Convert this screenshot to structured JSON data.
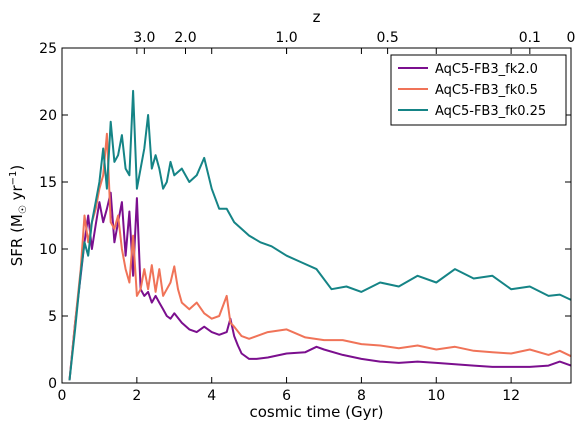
{
  "chart_data": {
    "type": "line",
    "xlabel": "cosmic time (Gyr)",
    "ylabel": {
      "prefix": "SFR (M",
      "sun_symbol": "☉",
      "unit": " yr",
      "exponent": "−1",
      "suffix": ")"
    },
    "top_axis_label": "z",
    "xlim": [
      0,
      13.6
    ],
    "ylim": [
      0,
      25
    ],
    "x_ticks": [
      "0",
      "2",
      "4",
      "6",
      "8",
      "10",
      "12"
    ],
    "x_tick_values": [
      0,
      2,
      4,
      6,
      8,
      10,
      12
    ],
    "y_ticks": [
      "0",
      "5",
      "10",
      "15",
      "20",
      "25"
    ],
    "y_tick_values": [
      0,
      5,
      10,
      15,
      20,
      25
    ],
    "top_ticks": [
      {
        "label": "3.0",
        "t": 2.2
      },
      {
        "label": "2.0",
        "t": 3.3
      },
      {
        "label": "1.0",
        "t": 6.0
      },
      {
        "label": "0.5",
        "t": 8.7
      },
      {
        "label": "0.1",
        "t": 12.5
      },
      {
        "label": "0",
        "t": 13.6
      }
    ],
    "legend_position": "top-right",
    "grid": false,
    "series": [
      {
        "name": "AqC5-FB3_fk2.0",
        "color": "#7b0f8e",
        "x": [
          0.2,
          0.35,
          0.5,
          0.6,
          0.7,
          0.8,
          0.9,
          1.0,
          1.1,
          1.2,
          1.3,
          1.4,
          1.5,
          1.6,
          1.7,
          1.8,
          1.9,
          2.0,
          2.1,
          2.2,
          2.3,
          2.4,
          2.5,
          2.6,
          2.7,
          2.8,
          2.9,
          3.0,
          3.2,
          3.4,
          3.6,
          3.8,
          4.0,
          4.2,
          4.4,
          4.5,
          4.6,
          4.7,
          4.8,
          5.0,
          5.2,
          5.5,
          6.0,
          6.5,
          6.8,
          7.0,
          7.5,
          8.0,
          8.5,
          9.0,
          9.5,
          10.0,
          10.5,
          11.0,
          11.5,
          12.0,
          12.5,
          13.0,
          13.3,
          13.6
        ],
        "y": [
          0.2,
          4.5,
          8.0,
          10.5,
          12.5,
          10.0,
          11.8,
          13.5,
          12.0,
          13.0,
          14.2,
          10.5,
          12.0,
          13.5,
          9.5,
          12.8,
          8.0,
          13.8,
          7.0,
          6.5,
          6.8,
          6.0,
          6.5,
          6.0,
          5.5,
          5.0,
          4.8,
          5.2,
          4.5,
          4.0,
          3.8,
          4.2,
          3.8,
          3.6,
          3.8,
          4.8,
          3.5,
          2.8,
          2.2,
          1.8,
          1.8,
          1.9,
          2.2,
          2.3,
          2.7,
          2.5,
          2.1,
          1.8,
          1.6,
          1.5,
          1.6,
          1.5,
          1.4,
          1.3,
          1.2,
          1.2,
          1.2,
          1.3,
          1.6,
          1.3
        ]
      },
      {
        "name": "AqC5-FB3_fk0.5",
        "color": "#f07358",
        "x": [
          0.2,
          0.35,
          0.5,
          0.6,
          0.7,
          0.8,
          0.9,
          1.0,
          1.1,
          1.2,
          1.3,
          1.4,
          1.5,
          1.6,
          1.7,
          1.8,
          1.9,
          2.0,
          2.1,
          2.2,
          2.3,
          2.4,
          2.5,
          2.6,
          2.7,
          2.8,
          2.9,
          3.0,
          3.1,
          3.2,
          3.4,
          3.6,
          3.8,
          4.0,
          4.2,
          4.4,
          4.5,
          4.6,
          4.8,
          5.0,
          5.5,
          6.0,
          6.5,
          7.0,
          7.5,
          8.0,
          8.5,
          9.0,
          9.5,
          10.0,
          10.5,
          11.0,
          11.5,
          12.0,
          12.5,
          13.0,
          13.3,
          13.6
        ],
        "y": [
          0.2,
          4.5,
          8.5,
          12.5,
          10.5,
          12.0,
          13.0,
          14.5,
          15.5,
          18.6,
          12.0,
          11.5,
          12.5,
          10.0,
          8.5,
          7.5,
          11.0,
          6.5,
          7.0,
          8.5,
          7.0,
          8.8,
          6.8,
          8.5,
          6.5,
          7.0,
          7.5,
          8.7,
          7.0,
          6.0,
          5.5,
          6.0,
          5.2,
          4.8,
          5.0,
          6.5,
          4.5,
          4.2,
          3.5,
          3.3,
          3.8,
          4.0,
          3.4,
          3.2,
          3.2,
          2.9,
          2.8,
          2.6,
          2.8,
          2.5,
          2.7,
          2.4,
          2.3,
          2.2,
          2.5,
          2.1,
          2.4,
          2.0
        ]
      },
      {
        "name": "AqC5-FB3_fk0.25",
        "color": "#158486",
        "x": [
          0.2,
          0.35,
          0.5,
          0.6,
          0.7,
          0.8,
          0.9,
          1.0,
          1.1,
          1.2,
          1.3,
          1.4,
          1.5,
          1.6,
          1.7,
          1.8,
          1.9,
          2.0,
          2.1,
          2.2,
          2.3,
          2.4,
          2.5,
          2.6,
          2.7,
          2.8,
          2.9,
          3.0,
          3.2,
          3.4,
          3.6,
          3.8,
          4.0,
          4.2,
          4.4,
          4.6,
          4.8,
          5.0,
          5.3,
          5.6,
          6.0,
          6.4,
          6.8,
          7.2,
          7.6,
          8.0,
          8.5,
          9.0,
          9.5,
          10.0,
          10.5,
          11.0,
          11.5,
          12.0,
          12.5,
          13.0,
          13.3,
          13.6
        ],
        "y": [
          0.2,
          4.0,
          8.2,
          10.5,
          9.5,
          12.0,
          13.5,
          15.0,
          17.5,
          14.5,
          19.5,
          16.5,
          17.0,
          18.5,
          16.0,
          15.5,
          21.8,
          14.5,
          16.0,
          17.5,
          20.0,
          16.0,
          17.0,
          16.0,
          14.5,
          15.0,
          16.5,
          15.5,
          16.0,
          15.0,
          15.5,
          16.8,
          14.5,
          13.0,
          13.0,
          12.0,
          11.5,
          11.0,
          10.5,
          10.2,
          9.5,
          9.0,
          8.5,
          7.0,
          7.2,
          6.8,
          7.5,
          7.2,
          8.0,
          7.5,
          8.5,
          7.8,
          8.0,
          7.0,
          7.2,
          6.5,
          6.6,
          6.2
        ]
      }
    ]
  }
}
